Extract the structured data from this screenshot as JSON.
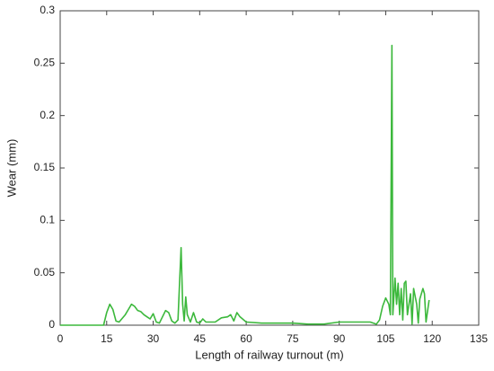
{
  "chart_data": {
    "type": "line",
    "xlabel": "Length of railway turnout (m)",
    "ylabel": "Wear (mm)",
    "x": [
      0,
      14,
      15,
      16,
      17,
      18,
      19,
      21,
      22,
      23,
      24,
      25,
      26,
      27,
      28,
      29,
      30,
      31,
      32,
      33,
      34,
      35,
      36,
      37,
      38,
      38.5,
      39,
      39.5,
      40,
      40.5,
      41,
      42,
      43,
      44,
      45,
      46,
      47,
      48,
      50,
      52,
      54,
      55,
      56,
      57,
      58,
      60,
      65,
      75,
      80,
      85,
      90,
      95,
      100,
      102,
      103,
      104,
      105,
      106,
      106.5,
      107,
      107.3,
      108,
      108.5,
      109,
      109.5,
      110,
      110.5,
      111,
      111.5,
      112,
      113,
      113.5,
      114,
      115,
      115.5,
      116,
      117,
      117.5,
      118,
      119
    ],
    "series": [
      {
        "name": "Wear",
        "color": "#3cb83c",
        "values": [
          0,
          0,
          0.012,
          0.02,
          0.015,
          0.004,
          0.003,
          0.01,
          0.015,
          0.02,
          0.018,
          0.014,
          0.013,
          0.01,
          0.008,
          0.006,
          0.011,
          0.003,
          0.002,
          0.008,
          0.014,
          0.012,
          0.004,
          0.002,
          0.005,
          0.04,
          0.074,
          0.02,
          0.004,
          0.027,
          0.01,
          0.003,
          0.012,
          0.003,
          0.002,
          0.006,
          0.003,
          0.003,
          0.003,
          0.007,
          0.008,
          0.01,
          0.004,
          0.012,
          0.008,
          0.003,
          0.002,
          0.002,
          0.001,
          0.001,
          0.003,
          0.003,
          0.003,
          0.001,
          0.005,
          0.018,
          0.026,
          0.02,
          0.01,
          0.267,
          0.01,
          0.045,
          0.02,
          0.04,
          0.01,
          0.035,
          0.005,
          0.04,
          0.042,
          0.01,
          0.03,
          0.001,
          0.035,
          0.02,
          0.002,
          0.025,
          0.035,
          0.03,
          0.003,
          0.024
        ]
      }
    ],
    "xlim": [
      0,
      135
    ],
    "xticks": [
      0,
      15,
      30,
      45,
      60,
      75,
      90,
      105,
      120,
      135
    ],
    "ylim": [
      0,
      0.3
    ],
    "yticks": [
      0,
      0.05,
      0.1,
      0.15,
      0.2,
      0.25,
      0.3
    ]
  }
}
